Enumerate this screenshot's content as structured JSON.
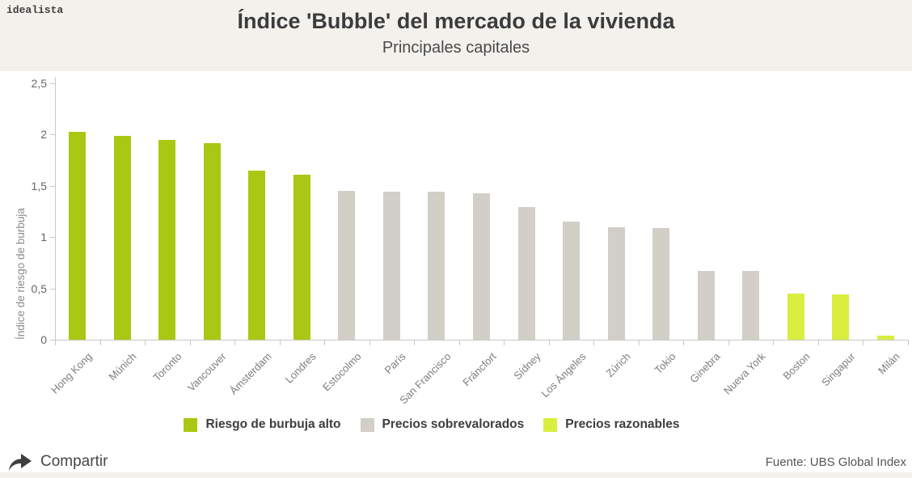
{
  "brand": {
    "logo_text": "idealista"
  },
  "header": {
    "title": "Índice 'Bubble' del mercado de la vivienda",
    "subtitle": "Principales capitales"
  },
  "chart_data": {
    "type": "bar",
    "title": "Índice 'Bubble' del mercado de la vivienda",
    "subtitle": "Principales capitales",
    "xlabel": "",
    "ylabel": "Índice de riesgo de burbuja",
    "ylim": [
      0,
      2.5
    ],
    "ytick_values": [
      0,
      0.5,
      1,
      1.5,
      2,
      2.5
    ],
    "ytick_labels": [
      "0",
      "0,5",
      "1",
      "1,5",
      "2",
      "2,5"
    ],
    "grid": false,
    "legend_position": "bottom",
    "categories": [
      "Hong Kong",
      "Múnich",
      "Toronto",
      "Vancouver",
      "Ámsterdam",
      "Londres",
      "Estocolmo",
      "París",
      "San Francisco",
      "Fráncfort",
      "Sídney",
      "Los Ángeles",
      "Zúrich",
      "Tokio",
      "Ginebra",
      "Nueva York",
      "Boston",
      "Singapur",
      "Milán"
    ],
    "values": [
      2.03,
      1.99,
      1.95,
      1.92,
      1.65,
      1.61,
      1.45,
      1.44,
      1.44,
      1.43,
      1.29,
      1.15,
      1.1,
      1.09,
      0.67,
      0.67,
      0.45,
      0.44,
      0.04
    ],
    "groups": [
      "alto",
      "alto",
      "alto",
      "alto",
      "alto",
      "alto",
      "sobrevalorado",
      "sobrevalorado",
      "sobrevalorado",
      "sobrevalorado",
      "sobrevalorado",
      "sobrevalorado",
      "sobrevalorado",
      "sobrevalorado",
      "sobrevalorado",
      "sobrevalorado",
      "razonable",
      "razonable",
      "razonable"
    ]
  },
  "legend": {
    "items": [
      {
        "label": "Riesgo de burbuja alto",
        "group": "alto",
        "color": "#a9c813"
      },
      {
        "label": "Precios sobrevalorados",
        "group": "sobrevalorado",
        "color": "#d1cfc6"
      },
      {
        "label": "Precios razonables",
        "group": "razonable",
        "color": "#d9ee3f"
      }
    ]
  },
  "colors": {
    "alto": "#a9c813",
    "sobrevalorado": "#d1cfc6",
    "razonable": "#d9ee3f",
    "band_background": "#f3f1ec",
    "axis": "#c8c8c8",
    "title_text": "#3c3c3c"
  },
  "footer": {
    "share_label": "Compartir",
    "source": "Fuente: UBS Global Index"
  }
}
